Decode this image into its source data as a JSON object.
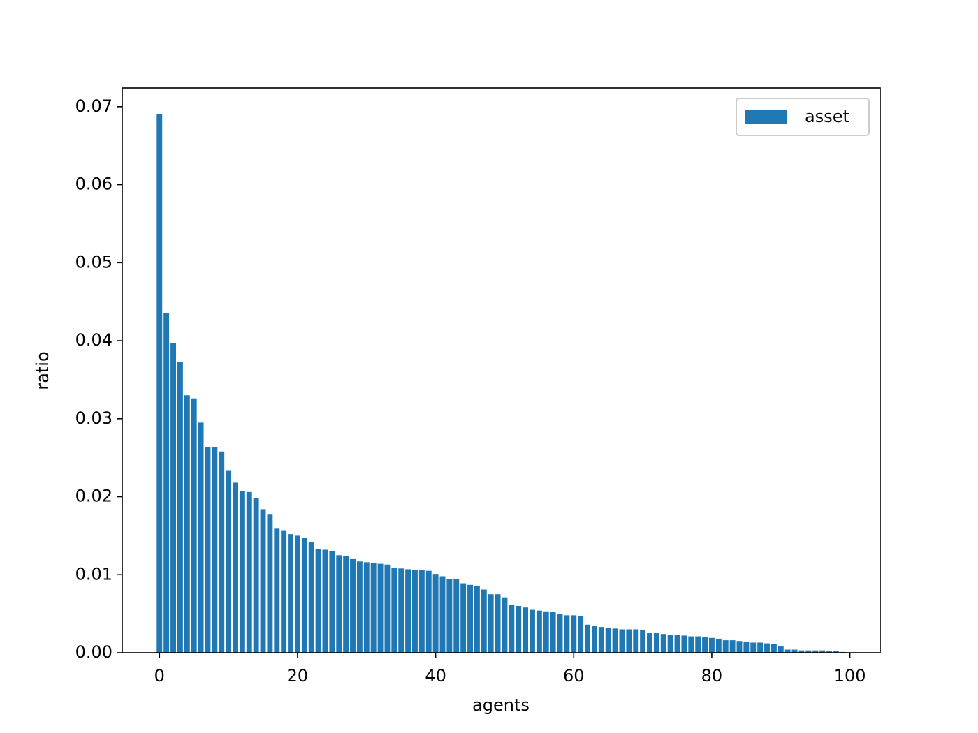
{
  "chart_data": {
    "type": "bar",
    "x": [
      0,
      1,
      2,
      3,
      4,
      5,
      6,
      7,
      8,
      9,
      10,
      11,
      12,
      13,
      14,
      15,
      16,
      17,
      18,
      19,
      20,
      21,
      22,
      23,
      24,
      25,
      26,
      27,
      28,
      29,
      30,
      31,
      32,
      33,
      34,
      35,
      36,
      37,
      38,
      39,
      40,
      41,
      42,
      43,
      44,
      45,
      46,
      47,
      48,
      49,
      50,
      51,
      52,
      53,
      54,
      55,
      56,
      57,
      58,
      59,
      60,
      61,
      62,
      63,
      64,
      65,
      66,
      67,
      68,
      69,
      70,
      71,
      72,
      73,
      74,
      75,
      76,
      77,
      78,
      79,
      80,
      81,
      82,
      83,
      84,
      85,
      86,
      87,
      88,
      89,
      90,
      91,
      92,
      93,
      94,
      95,
      96,
      97,
      98,
      99
    ],
    "series": [
      {
        "name": "asset",
        "color": "#1f77b4",
        "values": [
          0.069,
          0.0435,
          0.0397,
          0.0373,
          0.033,
          0.0326,
          0.0295,
          0.0264,
          0.0264,
          0.0258,
          0.0234,
          0.0218,
          0.0207,
          0.0206,
          0.0198,
          0.0184,
          0.0177,
          0.0159,
          0.0157,
          0.0152,
          0.015,
          0.0147,
          0.0142,
          0.0133,
          0.0132,
          0.013,
          0.0125,
          0.0124,
          0.012,
          0.0117,
          0.0116,
          0.0115,
          0.0114,
          0.0113,
          0.0109,
          0.0108,
          0.0107,
          0.0106,
          0.0106,
          0.0105,
          0.0101,
          0.0098,
          0.0094,
          0.0094,
          0.0089,
          0.0087,
          0.0086,
          0.0081,
          0.0075,
          0.0075,
          0.0071,
          0.0061,
          0.006,
          0.0058,
          0.0055,
          0.0054,
          0.0053,
          0.0052,
          0.005,
          0.0048,
          0.0048,
          0.0047,
          0.0036,
          0.0034,
          0.0033,
          0.0032,
          0.0031,
          0.003,
          0.003,
          0.003,
          0.0029,
          0.0025,
          0.0025,
          0.0024,
          0.0023,
          0.0023,
          0.0022,
          0.0021,
          0.0021,
          0.002,
          0.0019,
          0.0018,
          0.0016,
          0.0016,
          0.0015,
          0.0014,
          0.0013,
          0.0013,
          0.0012,
          0.0011,
          0.0008,
          0.0004,
          0.0004,
          0.0003,
          0.0003,
          0.0003,
          0.0003,
          0.0002,
          0.0002,
          0.0001
        ]
      }
    ],
    "xlabel": "agents",
    "ylabel": "ratio",
    "xlim": [
      -5.39,
      104.39
    ],
    "ylim": [
      0,
      0.0724
    ],
    "xticks": [
      0,
      20,
      40,
      60,
      80,
      100
    ],
    "yticks": [
      {
        "value": 0,
        "label": "0.00"
      },
      {
        "value": 0.01,
        "label": "0.01"
      },
      {
        "value": 0.02,
        "label": "0.02"
      },
      {
        "value": 0.03,
        "label": "0.03"
      },
      {
        "value": 0.04,
        "label": "0.04"
      },
      {
        "value": 0.05,
        "label": "0.05"
      },
      {
        "value": 0.06,
        "label": "0.06"
      },
      {
        "value": 0.07,
        "label": "0.07"
      }
    ],
    "legend": "upper right"
  }
}
